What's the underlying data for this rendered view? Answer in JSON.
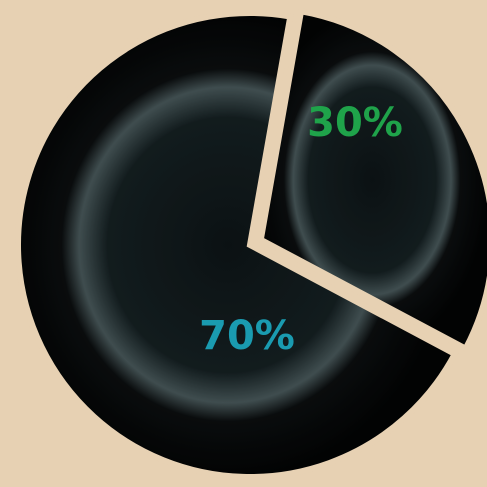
{
  "chart_data": {
    "type": "pie",
    "values": [
      30,
      70
    ],
    "value_labels": [
      "30%",
      "70%"
    ],
    "colors": [
      "#050607",
      "#050607"
    ],
    "label_colors": [
      "#1fa34a",
      "#1a9bb0"
    ]
  }
}
